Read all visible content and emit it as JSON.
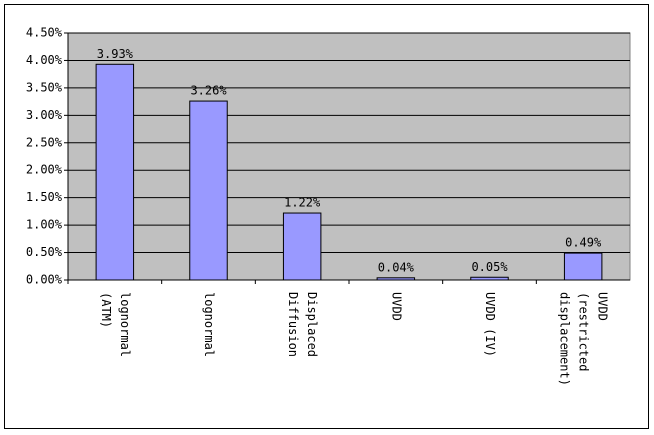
{
  "chart_data": {
    "type": "bar",
    "categories": [
      "lognormal\n(ATM)",
      "lognormal",
      "Displaced\nDiffusion",
      "UVDD",
      "UVDD (IV)",
      "UVDD\n(restricted\ndisplacement)"
    ],
    "values": [
      3.93,
      3.26,
      1.22,
      0.04,
      0.05,
      0.49
    ],
    "value_labels": [
      "3.93%",
      "3.26%",
      "1.22%",
      "0.04%",
      "0.05%",
      "0.49%"
    ],
    "color": "#9999ff",
    "ylim": [
      0,
      4.5
    ],
    "yticks": [
      {
        "value": 0,
        "label": "0.00%"
      },
      {
        "value": 0.5,
        "label": "0.50%"
      },
      {
        "value": 1,
        "label": "1.00%"
      },
      {
        "value": 1.5,
        "label": "1.50%"
      },
      {
        "value": 2,
        "label": "2.00%"
      },
      {
        "value": 2.5,
        "label": "2.50%"
      },
      {
        "value": 3,
        "label": "3.00%"
      },
      {
        "value": 3.5,
        "label": "3.50%"
      },
      {
        "value": 4,
        "label": "4.00%"
      },
      {
        "value": 4.5,
        "label": "4.50%"
      }
    ],
    "grid": true
  }
}
